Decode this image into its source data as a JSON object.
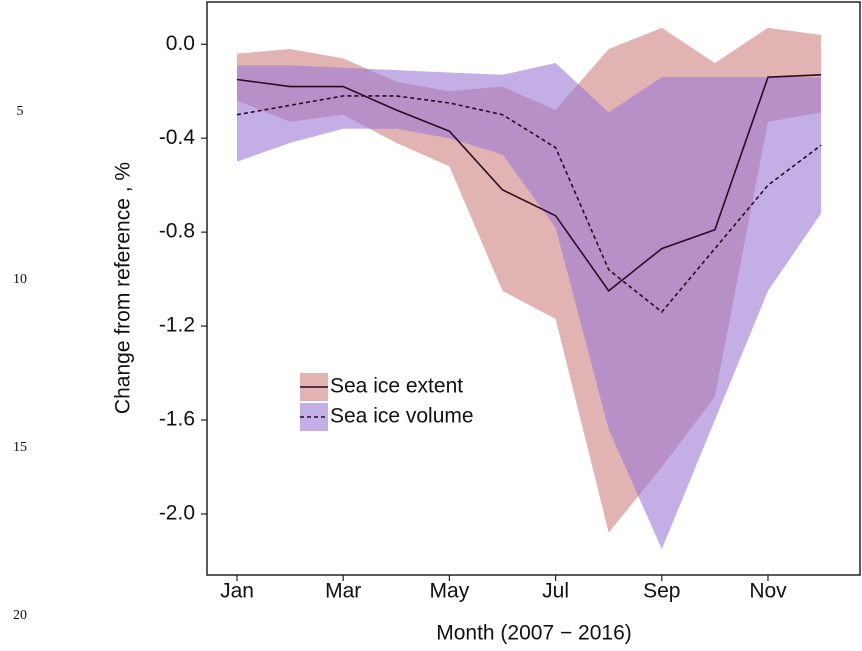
{
  "line_numbers": [
    5,
    10,
    15,
    20
  ],
  "chart_data": {
    "type": "line",
    "x_label": "Month (2007 − 2016)",
    "y_label": "Change from reference , %",
    "categories": [
      "Jan",
      null,
      "Mar",
      null,
      "May",
      null,
      "Jul",
      null,
      "Sep",
      null,
      "Nov",
      null
    ],
    "ylim": [
      -2.26,
      0.18
    ],
    "yticks": [
      {
        "value": 0,
        "label": "0.0"
      },
      {
        "value": -0.4,
        "label": "-0.4"
      },
      {
        "value": -0.8,
        "label": "-0.8"
      },
      {
        "value": -1.2,
        "label": "-1.2"
      },
      {
        "value": -1.6,
        "label": "-1.6"
      },
      {
        "value": -2,
        "label": "-2.0"
      }
    ],
    "legend": "bottom-left",
    "series": [
      {
        "name": "Sea ice extent",
        "color": "#cd8080",
        "line_color": "#2a0a22",
        "dash": false,
        "values": [
          -0.15,
          -0.18,
          -0.18,
          -0.28,
          -0.37,
          -0.62,
          -0.73,
          -1.05,
          -0.87,
          -0.79,
          -0.14,
          -0.13
        ],
        "upper": [
          -0.04,
          -0.02,
          -0.06,
          -0.16,
          -0.2,
          -0.18,
          -0.28,
          -0.02,
          0.07,
          -0.08,
          0.07,
          0.04
        ],
        "lower": [
          -0.24,
          -0.33,
          -0.3,
          -0.42,
          -0.52,
          -1.05,
          -1.17,
          -2.08,
          -1.8,
          -1.5,
          -0.33,
          -0.29
        ]
      },
      {
        "name": "Sea ice volume",
        "color": "#9c78d6",
        "line_color": "#2a0a22",
        "dash": true,
        "values": [
          -0.3,
          -0.26,
          -0.22,
          -0.22,
          -0.25,
          -0.3,
          -0.44,
          -0.96,
          -1.14,
          -0.87,
          -0.6,
          -0.43
        ],
        "upper": [
          -0.09,
          -0.09,
          -0.1,
          -0.11,
          -0.12,
          -0.13,
          -0.08,
          -0.29,
          -0.14,
          -0.14,
          -0.14,
          -0.14
        ],
        "lower": [
          -0.5,
          -0.42,
          -0.36,
          -0.36,
          -0.4,
          -0.47,
          -0.78,
          -1.64,
          -2.15,
          -1.6,
          -1.05,
          -0.72
        ]
      }
    ]
  }
}
